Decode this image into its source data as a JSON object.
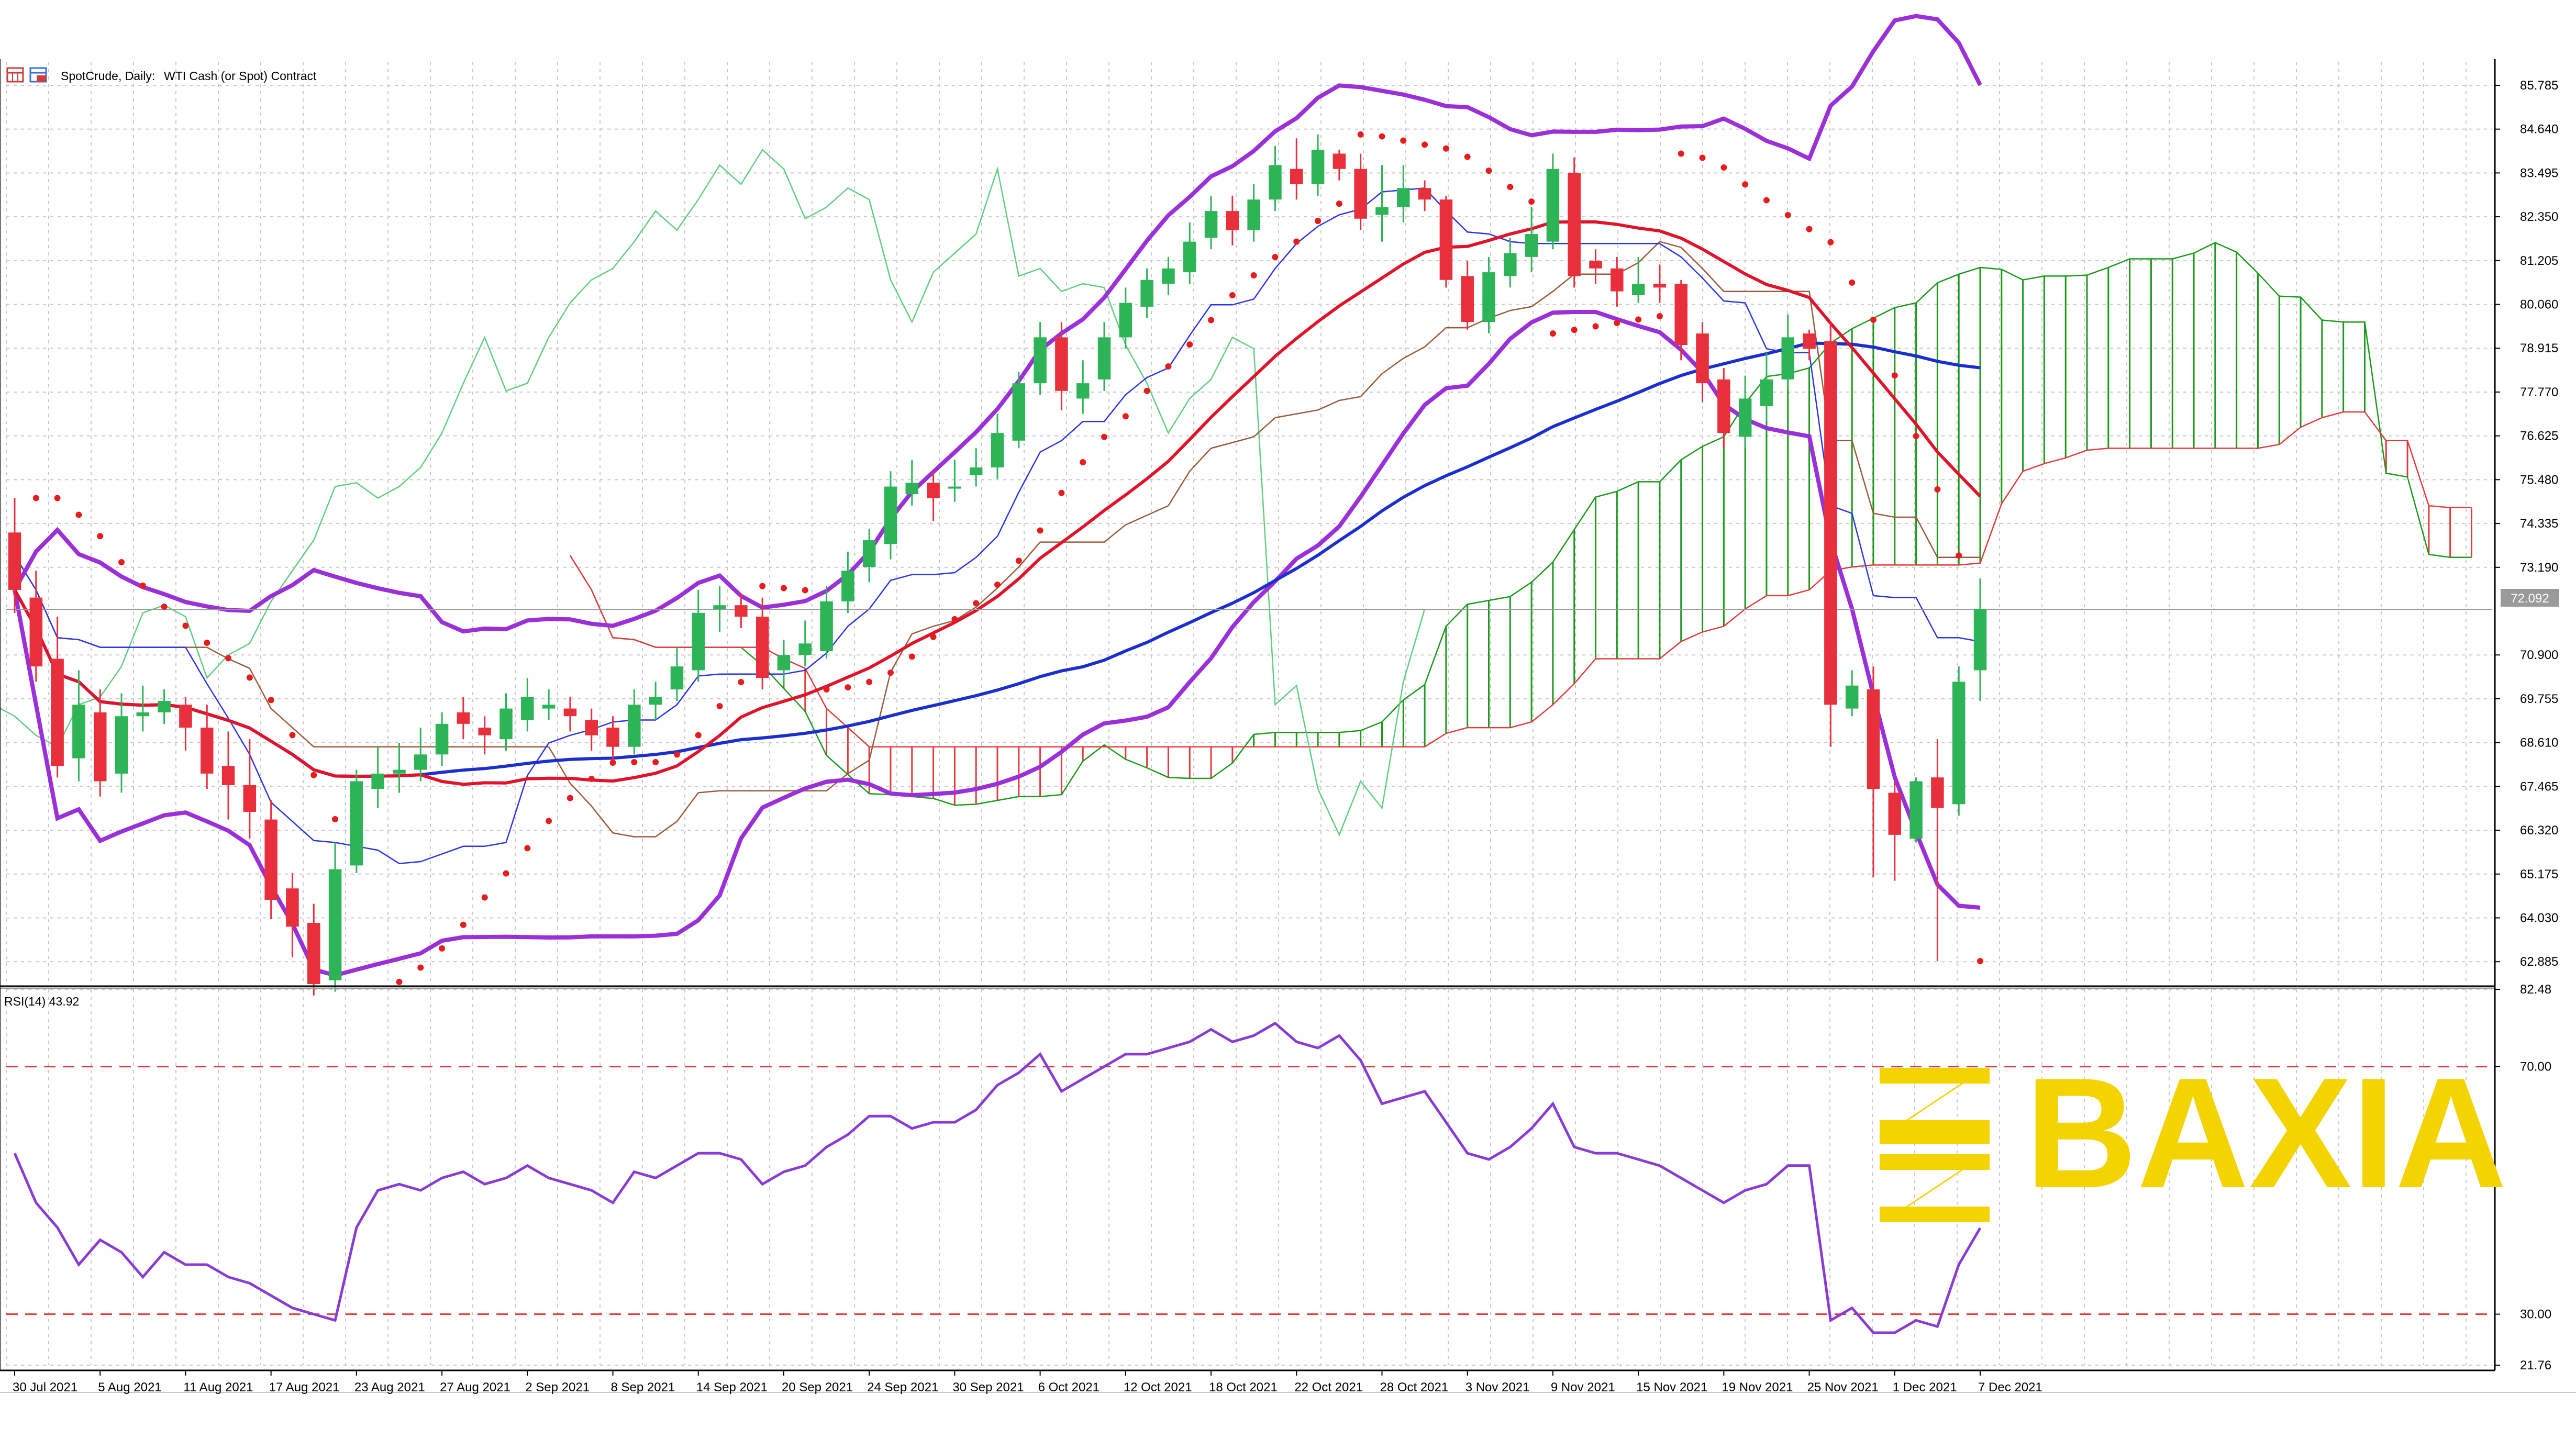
{
  "header": {
    "symbol": "SpotCrude, Daily:",
    "description": "WTI Cash (or Spot) Contract"
  },
  "rsi_label": "RSI(14) 43.92",
  "current_price_label": "72.092",
  "logo": {
    "text": "BAXIA",
    "color": "#f3d300"
  },
  "colors": {
    "bull": "#2db457",
    "bear": "#e8303c",
    "sma_slow": "#1b2fd0",
    "sma_fast": "#e0132b",
    "bollinger": "#9b30d9",
    "psar": "#e81c1c",
    "rsi": "#8a3bd4",
    "kumo_bull": "#1a9a1a",
    "kumo_bear": "#e23b3b",
    "chikou": "#5fcf7f",
    "tenkan": "#2a34e8",
    "kijun": "#9a5a3a",
    "current_line": "#9a9a9a"
  },
  "price_axis": {
    "ticks": [
      "85.785",
      "84.640",
      "83.495",
      "82.350",
      "81.205",
      "80.060",
      "78.915",
      "77.770",
      "76.625",
      "75.480",
      "74.335",
      "73.190",
      "72.092",
      "70.900",
      "69.755",
      "68.610",
      "67.465",
      "66.320",
      "65.175",
      "64.030",
      "62.885"
    ]
  },
  "rsi_axis": {
    "ticks": [
      "82.48",
      "70.00",
      "30.00",
      "21.76"
    ]
  },
  "date_axis": {
    "labels": [
      "30 Jul 2021",
      "5 Aug 2021",
      "11 Aug 2021",
      "17 Aug 2021",
      "23 Aug 2021",
      "27 Aug 2021",
      "2 Sep 2021",
      "8 Sep 2021",
      "14 Sep 2021",
      "20 Sep 2021",
      "24 Sep 2021",
      "30 Sep 2021",
      "6 Oct 2021",
      "12 Oct 2021",
      "18 Oct 2021",
      "22 Oct 2021",
      "28 Oct 2021",
      "3 Nov 2021",
      "9 Nov 2021",
      "15 Nov 2021",
      "19 Nov 2021",
      "25 Nov 2021",
      "1 Dec 2021",
      "7 Dec 2021"
    ]
  },
  "chart_data": [
    {
      "type": "candlestick",
      "title": "SpotCrude, Daily: WTI Cash (or Spot) Contract",
      "ylim": [
        62.3,
        86.4
      ],
      "last_price": 72.092,
      "x": [
        "30 Jul 2021",
        "2 Aug 2021",
        "3 Aug 2021",
        "4 Aug 2021",
        "5 Aug 2021",
        "6 Aug 2021",
        "9 Aug 2021",
        "10 Aug 2021",
        "11 Aug 2021",
        "12 Aug 2021",
        "13 Aug 2021",
        "16 Aug 2021",
        "17 Aug 2021",
        "18 Aug 2021",
        "19 Aug 2021",
        "20 Aug 2021",
        "23 Aug 2021",
        "24 Aug 2021",
        "25 Aug 2021",
        "26 Aug 2021",
        "27 Aug 2021",
        "30 Aug 2021",
        "31 Aug 2021",
        "1 Sep 2021",
        "2 Sep 2021",
        "3 Sep 2021",
        "6 Sep 2021",
        "7 Sep 2021",
        "8 Sep 2021",
        "9 Sep 2021",
        "10 Sep 2021",
        "13 Sep 2021",
        "14 Sep 2021",
        "15 Sep 2021",
        "16 Sep 2021",
        "17 Sep 2021",
        "20 Sep 2021",
        "21 Sep 2021",
        "22 Sep 2021",
        "23 Sep 2021",
        "24 Sep 2021",
        "27 Sep 2021",
        "28 Sep 2021",
        "29 Sep 2021",
        "30 Sep 2021",
        "1 Oct 2021",
        "4 Oct 2021",
        "5 Oct 2021",
        "6 Oct 2021",
        "7 Oct 2021",
        "8 Oct 2021",
        "11 Oct 2021",
        "12 Oct 2021",
        "13 Oct 2021",
        "14 Oct 2021",
        "15 Oct 2021",
        "18 Oct 2021",
        "19 Oct 2021",
        "20 Oct 2021",
        "21 Oct 2021",
        "22 Oct 2021",
        "25 Oct 2021",
        "26 Oct 2021",
        "27 Oct 2021",
        "28 Oct 2021",
        "29 Oct 2021",
        "1 Nov 2021",
        "2 Nov 2021",
        "3 Nov 2021",
        "4 Nov 2021",
        "5 Nov 2021",
        "8 Nov 2021",
        "9 Nov 2021",
        "10 Nov 2021",
        "11 Nov 2021",
        "12 Nov 2021",
        "15 Nov 2021",
        "16 Nov 2021",
        "17 Nov 2021",
        "18 Nov 2021",
        "19 Nov 2021",
        "22 Nov 2021",
        "23 Nov 2021",
        "24 Nov 2021",
        "25 Nov 2021",
        "26 Nov 2021",
        "29 Nov 2021",
        "30 Nov 2021",
        "1 Dec 2021",
        "2 Dec 2021",
        "3 Dec 2021",
        "6 Dec 2021",
        "7 Dec 2021"
      ],
      "open": [
        74.1,
        72.4,
        70.8,
        68.2,
        69.4,
        67.8,
        69.3,
        69.4,
        69.6,
        69.0,
        68.0,
        67.5,
        66.6,
        64.8,
        63.9,
        62.4,
        65.4,
        67.4,
        67.8,
        67.9,
        68.3,
        69.4,
        69.0,
        68.7,
        69.2,
        69.5,
        69.5,
        69.2,
        69.0,
        68.5,
        69.6,
        70.0,
        70.5,
        72.1,
        72.2,
        71.9,
        70.5,
        70.9,
        71.0,
        72.3,
        73.2,
        73.8,
        75.1,
        75.4,
        75.3,
        75.6,
        75.8,
        76.5,
        78.0,
        79.2,
        77.6,
        78.1,
        79.2,
        80.0,
        80.6,
        80.9,
        81.8,
        82.5,
        82.0,
        82.8,
        83.6,
        83.2,
        84.0,
        83.6,
        82.4,
        82.6,
        83.1,
        82.8,
        80.8,
        79.6,
        80.8,
        81.3,
        81.7,
        83.5,
        81.2,
        81.0,
        80.3,
        80.6,
        80.6,
        79.3,
        78.1,
        76.6,
        77.4,
        78.1,
        79.3,
        79.1,
        69.5,
        70.0,
        67.3,
        66.1,
        67.7,
        67.0,
        70.5
      ],
      "close": [
        72.6,
        70.6,
        68.0,
        69.6,
        67.6,
        69.3,
        69.4,
        69.7,
        69.0,
        67.8,
        67.5,
        66.8,
        64.5,
        63.8,
        62.3,
        65.3,
        67.6,
        67.8,
        67.9,
        68.3,
        69.1,
        69.1,
        68.8,
        69.5,
        69.8,
        69.6,
        69.3,
        68.8,
        68.5,
        69.6,
        69.8,
        70.6,
        72.0,
        72.2,
        71.9,
        70.3,
        70.9,
        71.2,
        72.3,
        73.1,
        73.9,
        75.3,
        75.4,
        75.0,
        75.3,
        75.8,
        76.7,
        78.0,
        79.2,
        77.8,
        78.0,
        79.2,
        80.1,
        80.7,
        81.0,
        81.7,
        82.5,
        82.0,
        82.8,
        83.7,
        83.2,
        84.1,
        83.6,
        82.3,
        82.6,
        83.1,
        82.8,
        80.7,
        79.6,
        80.9,
        81.4,
        81.9,
        83.6,
        80.8,
        81.0,
        80.4,
        80.6,
        80.5,
        79.0,
        78.0,
        76.7,
        77.6,
        78.1,
        79.2,
        78.9,
        69.6,
        70.1,
        67.4,
        66.2,
        67.6,
        66.9,
        70.2,
        72.1
      ],
      "high": [
        75.0,
        73.1,
        71.9,
        70.5,
        70.0,
        69.9,
        70.1,
        70.0,
        69.8,
        69.6,
        68.9,
        68.7,
        67.1,
        65.2,
        64.4,
        66.0,
        67.9,
        68.5,
        68.6,
        69.0,
        69.4,
        69.8,
        69.3,
        69.9,
        70.3,
        70.0,
        69.8,
        69.5,
        69.3,
        70.0,
        70.2,
        71.1,
        72.6,
        72.7,
        72.5,
        72.4,
        71.3,
        71.8,
        72.7,
        73.6,
        74.2,
        75.7,
        76.0,
        75.7,
        76.0,
        76.3,
        77.2,
        78.3,
        79.6,
        79.6,
        78.6,
        79.6,
        80.5,
        81.0,
        81.3,
        82.2,
        82.9,
        82.9,
        83.2,
        84.2,
        84.4,
        84.5,
        84.1,
        84.0,
        83.7,
        83.7,
        83.3,
        82.9,
        81.2,
        81.3,
        81.8,
        82.6,
        84.0,
        83.9,
        81.5,
        81.3,
        81.3,
        81.1,
        80.7,
        79.6,
        78.4,
        78.2,
        78.8,
        79.8,
        79.4,
        79.6,
        70.5,
        70.6,
        67.6,
        67.7,
        68.7,
        70.6,
        72.9
      ],
      "low": [
        72.0,
        70.2,
        67.7,
        67.6,
        67.2,
        67.3,
        68.9,
        69.1,
        68.4,
        67.4,
        66.6,
        66.1,
        64.0,
        63.0,
        62.0,
        62.1,
        65.2,
        66.9,
        67.3,
        67.6,
        68.0,
        68.7,
        68.3,
        68.4,
        68.9,
        69.2,
        68.9,
        68.4,
        68.1,
        68.3,
        69.2,
        69.7,
        70.2,
        71.5,
        71.6,
        70.0,
        70.1,
        70.6,
        70.8,
        72.0,
        72.8,
        73.4,
        74.8,
        74.4,
        74.9,
        75.3,
        75.5,
        76.3,
        77.7,
        77.3,
        77.2,
        77.8,
        78.9,
        79.7,
        80.3,
        80.6,
        81.5,
        81.6,
        81.7,
        82.5,
        82.8,
        82.9,
        83.3,
        82.0,
        81.7,
        82.2,
        82.5,
        80.5,
        79.4,
        79.3,
        80.5,
        80.9,
        81.5,
        80.5,
        80.6,
        80.0,
        80.1,
        80.1,
        78.6,
        77.5,
        76.3,
        76.3,
        77.0,
        77.9,
        78.6,
        68.5,
        69.3,
        65.1,
        65.0,
        66.0,
        62.9,
        66.7,
        69.7
      ]
    },
    {
      "type": "line",
      "title": "RSI(14) 43.92",
      "ylim": [
        21.76,
        82.48
      ],
      "levels": [
        70,
        30
      ],
      "x_from": "30 Jul 2021",
      "values": [
        56,
        48,
        44,
        38,
        42,
        40,
        36,
        40,
        38,
        38,
        36,
        35,
        33,
        31,
        30,
        29,
        44,
        50,
        51,
        50,
        52,
        53,
        51,
        52,
        54,
        52,
        51,
        50,
        48,
        53,
        52,
        54,
        56,
        56,
        55,
        51,
        53,
        54,
        57,
        59,
        62,
        62,
        60,
        61,
        61,
        63,
        67,
        69,
        72,
        66,
        68,
        70,
        72,
        72,
        73,
        74,
        76,
        74,
        75,
        77,
        74,
        73,
        75,
        71,
        64,
        65,
        66,
        61,
        56,
        55,
        57,
        60,
        64,
        57,
        56,
        56,
        55,
        54,
        52,
        50,
        48,
        50,
        51,
        54,
        54,
        29,
        31,
        27,
        27,
        29,
        28,
        38,
        43.92
      ]
    }
  ]
}
